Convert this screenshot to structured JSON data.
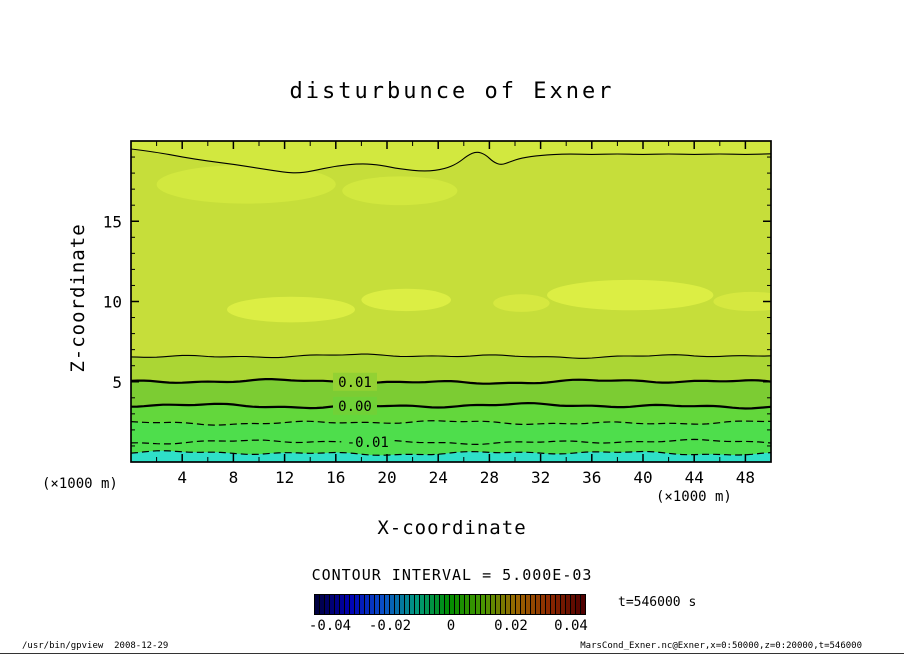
{
  "page": {
    "background": "#ffffff"
  },
  "title": "disturbunce of Exner",
  "footer": {
    "left": "/usr/bin/gpview  2008-12-29",
    "right": "MarsCond_Exner.nc@Exner,x=0:50000,z=0:20000,t=546000"
  },
  "chart_data": {
    "type": "contour",
    "title": "disturbunce of Exner",
    "xlabel": "X-coordinate",
    "ylabel": "Z-coordinate",
    "x_unit": "(×1000 m)",
    "y_unit": "(×1000 m)",
    "xlim": [
      0,
      50
    ],
    "ylim": [
      0,
      20
    ],
    "x_major_ticks": [
      4,
      8,
      12,
      16,
      20,
      24,
      28,
      32,
      36,
      40,
      44,
      48
    ],
    "x_minor_step": 2,
    "y_major_ticks": [
      5,
      10,
      15
    ],
    "y_minor_step": 1,
    "contour_interval": 0.005,
    "contour_interval_text": "CONTOUR INTERVAL = 5.000E-03",
    "time_label": "t=546000 s",
    "contours": [
      {
        "level": 0.015,
        "style": "thin",
        "z": 18.8,
        "points": [
          [
            0,
            19.5
          ],
          [
            2,
            19.3
          ],
          [
            4,
            19.0
          ],
          [
            6,
            18.75
          ],
          [
            8,
            18.55
          ],
          [
            10,
            18.3
          ],
          [
            12,
            18.05
          ],
          [
            13,
            18.0
          ],
          [
            14,
            18.1
          ],
          [
            16,
            18.45
          ],
          [
            18,
            18.6
          ],
          [
            19.5,
            18.5
          ],
          [
            21,
            18.25
          ],
          [
            23,
            18.1
          ],
          [
            24.5,
            18.25
          ],
          [
            25.5,
            18.6
          ],
          [
            26.3,
            19.1
          ],
          [
            27,
            19.35
          ],
          [
            27.7,
            19.15
          ],
          [
            28.3,
            18.7
          ],
          [
            28.9,
            18.5
          ],
          [
            29.6,
            18.7
          ],
          [
            30.5,
            18.95
          ],
          [
            32,
            19.1
          ],
          [
            34,
            19.2
          ],
          [
            36,
            19.15
          ],
          [
            38,
            19.2
          ],
          [
            40,
            19.15
          ],
          [
            42,
            19.2
          ],
          [
            44,
            19.15
          ],
          [
            46,
            19.2
          ],
          [
            48,
            19.15
          ],
          [
            50,
            19.2
          ]
        ]
      },
      {
        "level": 0.015,
        "style": "thin",
        "z": 6.6
      },
      {
        "level": 0.01,
        "style": "thick",
        "z": 5.0,
        "label": "0.01",
        "label_x": 17.5,
        "label_bg": "#93d133"
      },
      {
        "level": 0.0,
        "style": "thick",
        "z": 3.5,
        "label": "0.00",
        "label_x": 17.5,
        "label_bg": "#70d137"
      },
      {
        "level": -0.005,
        "style": "dashed",
        "z": 2.45
      },
      {
        "level": -0.01,
        "style": "dashed",
        "z": 1.25,
        "label": "-0.01",
        "label_x": 18.5,
        "label_bg": "#4ede4c"
      },
      {
        "level": -0.015,
        "style": "dashed",
        "z": 0.55
      }
    ],
    "bands": [
      {
        "color": "#2fe0c8",
        "top_contour": 6,
        "note": "below -0.015"
      },
      {
        "color": "#4ede4c",
        "top_contour": 4,
        "note": "-0.015 to -0.005"
      },
      {
        "color": "#63d73c",
        "top_contour": 3,
        "note": "-0.005 to 0.00"
      },
      {
        "color": "#7ccc33",
        "top_contour": 2,
        "note": "0.00 to 0.01"
      },
      {
        "color": "#abd634",
        "top_contour": 1,
        "note": "0.01 to 0.015"
      },
      {
        "color": "#c6de3a",
        "top_contour": 0,
        "note": "above 0.015 (main body)"
      },
      {
        "color": "#d2e83f",
        "top_contour": null,
        "note": "uppermost region"
      }
    ],
    "highlight_patches": [
      {
        "cx": 12.5,
        "cz": 9.5,
        "rx": 5.0,
        "rz": 0.8,
        "color": "#dcee44"
      },
      {
        "cx": 21.5,
        "cz": 10.1,
        "rx": 3.5,
        "rz": 0.7,
        "color": "#dcee44"
      },
      {
        "cx": 30.5,
        "cz": 9.9,
        "rx": 2.2,
        "rz": 0.55,
        "color": "#d6e840"
      },
      {
        "cx": 39.0,
        "cz": 10.4,
        "rx": 6.5,
        "rz": 0.95,
        "color": "#dcee44"
      },
      {
        "cx": 48.5,
        "cz": 10.0,
        "rx": 3.0,
        "rz": 0.6,
        "color": "#d6e840"
      },
      {
        "cx": 9.0,
        "cz": 17.3,
        "rx": 7.0,
        "rz": 1.2,
        "color": "#d2e83f"
      },
      {
        "cx": 21.0,
        "cz": 16.9,
        "rx": 4.5,
        "rz": 0.9,
        "color": "#d2e83f"
      }
    ],
    "colorbar": {
      "cells": 54,
      "range": [
        -0.045,
        0.045
      ],
      "ticks": [
        {
          "value": -0.04,
          "label": "-0.04"
        },
        {
          "value": -0.02,
          "label": "-0.02"
        },
        {
          "value": 0,
          "label": "0"
        },
        {
          "value": 0.02,
          "label": "0.02"
        },
        {
          "value": 0.04,
          "label": "0.04"
        }
      ],
      "stops": [
        "#000041",
        "#0000b4",
        "#0a50c8",
        "#00997d",
        "#008c00",
        "#4b9600",
        "#9b6400",
        "#8c2800",
        "#500000"
      ]
    }
  }
}
